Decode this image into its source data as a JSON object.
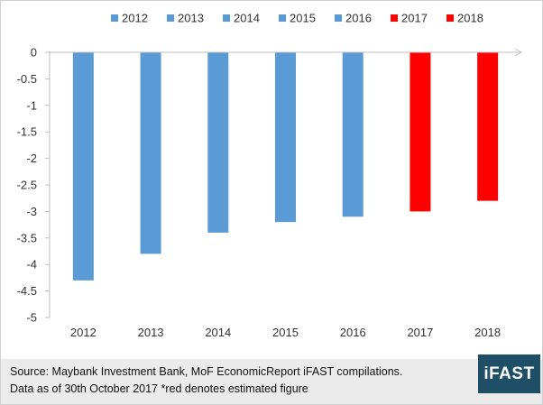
{
  "chart_data": {
    "type": "bar",
    "categories": [
      "2012",
      "2013",
      "2014",
      "2015",
      "2016",
      "2017",
      "2018"
    ],
    "values": [
      -4.3,
      -3.8,
      -3.4,
      -3.2,
      -3.1,
      -3.0,
      -2.8
    ],
    "bar_colors": [
      "#5b9bd5",
      "#5b9bd5",
      "#5b9bd5",
      "#5b9bd5",
      "#5b9bd5",
      "#ff0000",
      "#ff0000"
    ],
    "legend": [
      {
        "label": "2012",
        "color": "#5b9bd5"
      },
      {
        "label": "2013",
        "color": "#5b9bd5"
      },
      {
        "label": "2014",
        "color": "#5b9bd5"
      },
      {
        "label": "2015",
        "color": "#5b9bd5"
      },
      {
        "label": "2016",
        "color": "#5b9bd5"
      },
      {
        "label": "2017",
        "color": "#ff0000"
      },
      {
        "label": "2018",
        "color": "#ff0000"
      }
    ],
    "legend_position": "top",
    "y_ticks": [
      "0",
      "-0.5",
      "-1",
      "-1.5",
      "-2",
      "-2.5",
      "-3",
      "-3.5",
      "-4",
      "-4.5",
      "-5"
    ],
    "ylim": [
      -5,
      0
    ],
    "grid": false,
    "title": "",
    "xlabel": "",
    "ylabel": ""
  },
  "footer": {
    "line1": "Source: Maybank Investment Bank, MoF EconomicReport iFAST compilations.",
    "line2": "Data as of 30th October 2017   *red denotes estimated figure",
    "background": "#ebebeb"
  },
  "logo": {
    "text": "iFAST",
    "color": "#1f4e67"
  }
}
